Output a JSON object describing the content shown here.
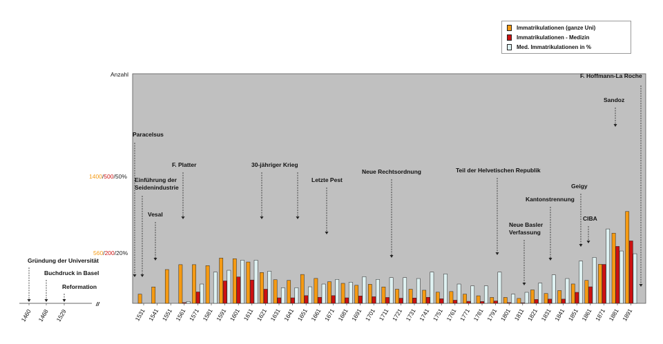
{
  "chart_data": {
    "type": "bar",
    "ylabel": "Anzahl",
    "scale_markers": [
      {
        "parts": [
          "1400",
          "500",
          "50%"
        ],
        "colors": [
          "#f59a13",
          "#cc1111",
          "#222222"
        ],
        "value_total": 1400
      },
      {
        "parts": [
          "560",
          "200",
          "20%"
        ],
        "colors": [
          "#f59a13",
          "#cc1111",
          "#222222"
        ],
        "value_total": 560
      }
    ],
    "categories": [
      "1531",
      "1541",
      "1551",
      "1561",
      "1571",
      "1581",
      "1591",
      "1601",
      "1611",
      "1621",
      "1631",
      "1641",
      "1651",
      "1661",
      "1671",
      "1681",
      "1691",
      "1701",
      "1711",
      "1721",
      "1731",
      "1741",
      "1751",
      "1761",
      "1771",
      "1781",
      "1791",
      "1801",
      "1811",
      "1821",
      "1831",
      "1841",
      "1851",
      "1861",
      "1871",
      "1881",
      "1891"
    ],
    "series": [
      {
        "name": "Immatrikulationen (ganze Uni)",
        "color": "#f59a13",
        "unit_max": 3500,
        "values": [
          140,
          250,
          515,
          590,
          590,
          575,
          690,
          680,
          630,
          470,
          360,
          350,
          440,
          380,
          330,
          305,
          275,
          290,
          250,
          215,
          215,
          200,
          170,
          180,
          140,
          115,
          90,
          90,
          75,
          205,
          150,
          195,
          295,
          350,
          595,
          1070,
          1400
        ]
      },
      {
        "name": "Immatrikulationen - Medizin",
        "color": "#cc1111",
        "unit_max": 1250,
        "values": [
          0,
          0,
          0,
          4,
          62,
          0,
          122,
          144,
          127,
          77,
          30,
          30,
          42,
          33,
          42,
          30,
          40,
          36,
          32,
          28,
          29,
          33,
          25,
          17,
          11,
          10,
          13,
          4,
          3,
          21,
          23,
          23,
          60,
          90,
          212,
          310,
          340
        ]
      },
      {
        "name": "Med. Immatrikulationen in %",
        "color": "#dff2f2",
        "unit_max": 125,
        "values": [
          0,
          0,
          0,
          1,
          10.5,
          17,
          18,
          23.5,
          23.5,
          17.5,
          8.5,
          8.5,
          9,
          10.5,
          13,
          11.5,
          14.5,
          13,
          14,
          14,
          13.5,
          17,
          16,
          10.5,
          9.5,
          9.5,
          17,
          5,
          6,
          11,
          15.5,
          13.5,
          23,
          25,
          40.5,
          28.5,
          27
        ]
      }
    ],
    "annotations": [
      {
        "text": "Paracelsus",
        "x": "1531"
      },
      {
        "text": "Einführung der Seidenindustrie",
        "x": "1531"
      },
      {
        "text": "Vesal",
        "x": "1541"
      },
      {
        "text": "F. Platter",
        "x": "1561"
      },
      {
        "text": "30-jähriger Krieg",
        "x": "1621–1641"
      },
      {
        "text": "Letzte Pest",
        "x": "1671"
      },
      {
        "text": "Neue Rechtsordnung",
        "x": "1711"
      },
      {
        "text": "Teil der Helvetischen Republik",
        "x": "1791"
      },
      {
        "text": "Neue Basler Verfassung",
        "x": "1811"
      },
      {
        "text": "Kantonstrennung",
        "x": "1831"
      },
      {
        "text": "Geigy",
        "x": "1851"
      },
      {
        "text": "CIBA",
        "x": "1861"
      },
      {
        "text": "Sandoz",
        "x": "1881"
      },
      {
        "text": "F. Hoffmann-La Roche",
        "x": "1891"
      }
    ],
    "early_timeline": {
      "ticks": [
        "1460",
        "1468",
        "1529"
      ],
      "events": [
        "Gründung der Universität",
        "Buchdruck in Basel",
        "Reformation"
      ],
      "break_marker": "//"
    },
    "legend": {
      "placement": "top-right"
    },
    "plot_background": "#c0c0c0"
  }
}
